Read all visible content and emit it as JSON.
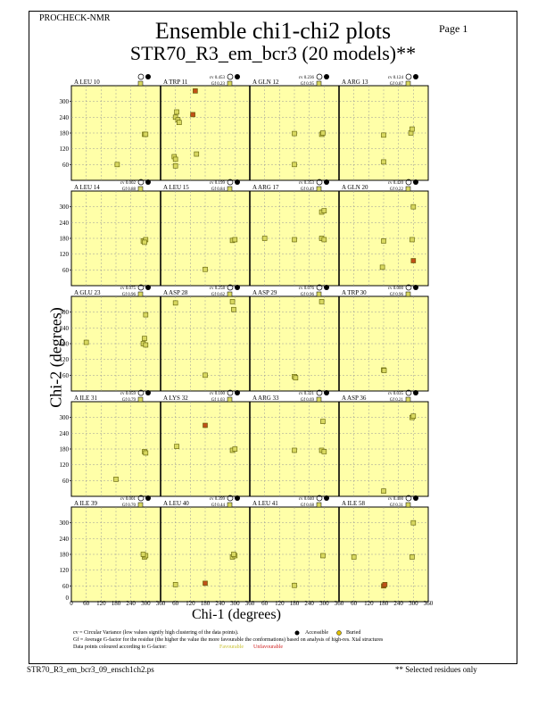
{
  "header": {
    "program": "PROCHECK-NMR",
    "page": "Page  1",
    "title": "Ensemble chi1-chi2 plots",
    "subtitle": "STR70_R3_em_bcr3 (20 models)**"
  },
  "axes": {
    "xlabel": "Chi-1 (degrees)",
    "ylabel": "Chi-2 (degrees)",
    "xticks": [
      "0",
      "60",
      "120",
      "180",
      "240",
      "300",
      "360"
    ],
    "yticks": [
      "0",
      "60",
      "120",
      "180",
      "240",
      "300"
    ]
  },
  "legend": {
    "cv_note": "cv = Circular Variance (low values signify high clustering of the data points).",
    "accessible": "Accessible",
    "buried": "Buried",
    "gf_note": "Gf = Average G-factor for the residue (the higher the value the more favourable the conformations) based on analysis of high-res. Xtal structures",
    "colour_note": "Data points coloured according to G-factor:",
    "favourable": "Favourable",
    "unfavourable": "Unfavourable"
  },
  "footer": {
    "filename": "STR70_R3_em_bcr3_09_ensch1ch2.ps",
    "selected": "** Selected residues only"
  },
  "colors": {
    "panel": "#ffffa8",
    "favourable": "#d8d860",
    "unfavourable": "#c05018"
  },
  "chart_data": {
    "type": "scatter",
    "xlim": [
      0,
      360
    ],
    "ylim": [
      0,
      360
    ],
    "panels": [
      {
        "residue": "A LEU 10",
        "cv": "",
        "gf": "",
        "points": [
          [
            185,
            60
          ],
          [
            295,
            175
          ],
          [
            300,
            175
          ]
        ]
      },
      {
        "residue": "A TRP 11",
        "cv": "cv 0.453",
        "gf": "Gf  0.23",
        "points": [
          [
            60,
            240
          ],
          [
            65,
            260
          ],
          [
            70,
            230
          ],
          [
            75,
            220
          ],
          [
            55,
            90
          ],
          [
            60,
            80
          ],
          [
            60,
            55
          ],
          [
            130,
            250
          ],
          [
            140,
            340
          ],
          [
            145,
            100
          ]
        ]
      },
      {
        "residue": "A GLN 12",
        "cv": "cv 0.236",
        "gf": "Gf  0.95",
        "points": [
          [
            180,
            178
          ],
          [
            180,
            60
          ],
          [
            290,
            175
          ],
          [
            295,
            180
          ]
        ]
      },
      {
        "residue": "A ARG 13",
        "cv": "cv 0.124",
        "gf": "Gf  0.87",
        "points": [
          [
            180,
            172
          ],
          [
            180,
            70
          ],
          [
            290,
            180
          ],
          [
            295,
            195
          ]
        ]
      },
      {
        "residue": "A LEU 14",
        "cv": "cv 0.002",
        "gf": "Gf  0.88",
        "points": [
          [
            290,
            170
          ],
          [
            300,
            175
          ],
          [
            295,
            165
          ]
        ]
      },
      {
        "residue": "A LEU 15",
        "cv": "cv 0.199",
        "gf": "Gf  0.84",
        "points": [
          [
            180,
            62
          ],
          [
            290,
            172
          ],
          [
            300,
            175
          ]
        ]
      },
      {
        "residue": "A ARG 17",
        "cv": "cv 0.353",
        "gf": "Gf  0.49",
        "points": [
          [
            60,
            180
          ],
          [
            180,
            175
          ],
          [
            290,
            180
          ],
          [
            300,
            175
          ],
          [
            290,
            280
          ],
          [
            300,
            285
          ]
        ]
      },
      {
        "residue": "A GLN 20",
        "cv": "cv 0.420",
        "gf": "Gf  0.22",
        "points": [
          [
            180,
            170
          ],
          [
            175,
            70
          ],
          [
            295,
            175
          ],
          [
            300,
            300
          ],
          [
            300,
            95
          ]
        ]
      },
      {
        "residue": "A GLU 23",
        "cv": "cv 0.075",
        "gf": "Gf  0.96",
        "points": [
          [
            60,
            185
          ],
          [
            290,
            180
          ],
          [
            300,
            175
          ],
          [
            295,
            200
          ],
          [
            300,
            290
          ]
        ]
      },
      {
        "residue": "A ASP 28",
        "cv": "cv 0.258",
        "gf": "Gf  0.62",
        "points": [
          [
            60,
            335
          ],
          [
            180,
            60
          ],
          [
            290,
            340
          ],
          [
            295,
            310
          ]
        ]
      },
      {
        "residue": "A ASP 29",
        "cv": "cv 0.076",
        "gf": "Gf  0.96",
        "points": [
          [
            180,
            55
          ],
          [
            185,
            50
          ],
          [
            290,
            340
          ]
        ]
      },
      {
        "residue": "A TRP 30",
        "cv": "cv 0.000",
        "gf": "Gf  0.96",
        "points": [
          [
            180,
            80
          ],
          [
            182,
            78
          ]
        ]
      },
      {
        "residue": "A ILE 31",
        "cv": "cv 0.059",
        "gf": "Gf  0.79",
        "points": [
          [
            180,
            65
          ],
          [
            295,
            170
          ],
          [
            300,
            165
          ]
        ]
      },
      {
        "residue": "A LYS 32",
        "cv": "cv 0.100",
        "gf": "Gf  1.03",
        "points": [
          [
            65,
            190
          ],
          [
            180,
            270
          ],
          [
            290,
            175
          ],
          [
            300,
            180
          ]
        ]
      },
      {
        "residue": "A ARG 33",
        "cv": "cv 0.321",
        "gf": "Gf  0.69",
        "points": [
          [
            180,
            175
          ],
          [
            290,
            175
          ],
          [
            295,
            285
          ],
          [
            300,
            170
          ]
        ]
      },
      {
        "residue": "A ASP 36",
        "cv": "cv 0.035",
        "gf": "Gf  0.21",
        "points": [
          [
            180,
            20
          ],
          [
            295,
            300
          ],
          [
            300,
            305
          ]
        ]
      },
      {
        "residue": "A ILE 39",
        "cv": "cv 0.001",
        "gf": "Gf  0.70",
        "points": [
          [
            295,
            170
          ],
          [
            300,
            175
          ],
          [
            290,
            180
          ]
        ]
      },
      {
        "residue": "A LEU 40",
        "cv": "cv 0.399",
        "gf": "Gf  0.44",
        "points": [
          [
            60,
            65
          ],
          [
            180,
            70
          ],
          [
            290,
            170
          ],
          [
            300,
            175
          ],
          [
            295,
            180
          ]
        ]
      },
      {
        "residue": "A LEU 41",
        "cv": "cv 0.040",
        "gf": "Gf  0.68",
        "points": [
          [
            180,
            62
          ],
          [
            295,
            175
          ]
        ]
      },
      {
        "residue": "A ILE 58",
        "cv": "cv 0.400",
        "gf": "Gf  0.31",
        "points": [
          [
            60,
            170
          ],
          [
            180,
            60
          ],
          [
            185,
            65
          ],
          [
            295,
            170
          ],
          [
            300,
            300
          ]
        ]
      }
    ]
  }
}
